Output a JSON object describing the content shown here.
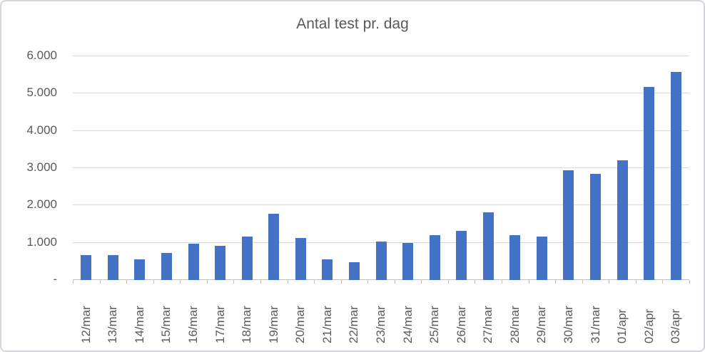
{
  "chart_data": {
    "type": "bar",
    "title": "Antal test pr. dag",
    "categories": [
      "12/mar",
      "13/mar",
      "14/mar",
      "15/mar",
      "16/mar",
      "17/mar",
      "18/mar",
      "19/mar",
      "20/mar",
      "21/mar",
      "22/mar",
      "23/mar",
      "24/mar",
      "25/mar",
      "26/mar",
      "27/mar",
      "28/mar",
      "29/mar",
      "30/mar",
      "31/mar",
      "01/apr",
      "02/apr",
      "03/apr"
    ],
    "values": [
      650,
      650,
      540,
      700,
      960,
      890,
      1150,
      1760,
      1110,
      540,
      450,
      1010,
      970,
      1190,
      1300,
      1800,
      1190,
      1150,
      2930,
      2820,
      3200,
      5150,
      5560
    ],
    "xlabel": "",
    "ylabel": "",
    "ylim": [
      0,
      6000
    ],
    "ytick_interval": 1000,
    "ytick_labels": [
      "-",
      "1.000",
      "2.000",
      "3.000",
      "4.000",
      "5.000",
      "6.000"
    ],
    "grid": true,
    "legend": false,
    "colors": {
      "bar": "#4472C4",
      "gridline": "#d9d9d9",
      "axis_line": "#bfbfbf",
      "text": "#595959",
      "frame_border": "#d3d6da"
    }
  }
}
